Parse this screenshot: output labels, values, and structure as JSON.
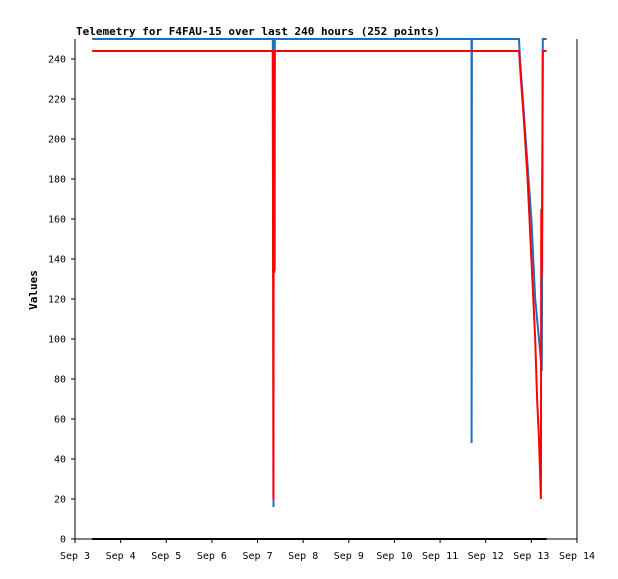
{
  "chart_data": {
    "type": "line",
    "title": "Telemetry for F4FAU-15 over last 240 hours (252 points)",
    "xlabel": "",
    "ylabel": "Values",
    "ylim": [
      0,
      250
    ],
    "xlim": [
      "Sep 3",
      "Sep 14"
    ],
    "x_ticks": [
      "Sep 3",
      "Sep 4",
      "Sep 5",
      "Sep 6",
      "Sep 7",
      "Sep 8",
      "Sep 9",
      "Sep 10",
      "Sep 11",
      "Sep 12",
      "Sep 13",
      "Sep 14"
    ],
    "y_ticks": [
      0,
      20,
      40,
      60,
      80,
      100,
      120,
      140,
      160,
      180,
      200,
      220,
      240
    ],
    "grid": false,
    "series": [
      {
        "color": "#1f6fbf",
        "points": [
          [
            "Sep 3 09:00",
            250
          ],
          [
            "Sep 7 08:00",
            250
          ],
          [
            "Sep 7 08:10",
            134
          ],
          [
            "Sep 7 08:20",
            250
          ],
          [
            "Sep 7 08:25",
            16
          ],
          [
            "Sep 7 08:30",
            250
          ],
          [
            "Sep 7 08:40",
            134
          ],
          [
            "Sep 7 08:45",
            250
          ],
          [
            "Sep 7 09:00",
            134
          ],
          [
            "Sep 7 09:05",
            250
          ],
          [
            "Sep 11 16:30",
            250
          ],
          [
            "Sep 11 16:35",
            48
          ],
          [
            "Sep 11 16:40",
            150
          ],
          [
            "Sep 11 16:45",
            250
          ],
          [
            "Sep 12 17:30",
            250
          ],
          [
            "Sep 12 18:00",
            240
          ],
          [
            "Sep 12 21:00",
            200
          ],
          [
            "Sep 13 00:00",
            160
          ],
          [
            "Sep 13 02:00",
            120
          ],
          [
            "Sep 13 04:00",
            100
          ],
          [
            "Sep 13 05:30",
            84
          ],
          [
            "Sep 13 06:00",
            250
          ],
          [
            "Sep 13 08:00",
            250
          ]
        ]
      },
      {
        "color": "#ff0000",
        "points": [
          [
            "Sep 3 09:00",
            244
          ],
          [
            "Sep 7 08:00",
            244
          ],
          [
            "Sep 7 08:20",
            20
          ],
          [
            "Sep 7 08:30",
            244
          ],
          [
            "Sep 7 08:45",
            133
          ],
          [
            "Sep 7 09:00",
            244
          ],
          [
            "Sep 12 17:30",
            244
          ],
          [
            "Sep 12 18:30",
            230
          ],
          [
            "Sep 12 20:00",
            210
          ],
          [
            "Sep 12 22:00",
            180
          ],
          [
            "Sep 13 00:00",
            140
          ],
          [
            "Sep 13 02:00",
            100
          ],
          [
            "Sep 13 03:00",
            70
          ],
          [
            "Sep 13 04:00",
            50
          ],
          [
            "Sep 13 05:00",
            20
          ],
          [
            "Sep 13 05:15",
            165
          ],
          [
            "Sep 13 05:30",
            132
          ],
          [
            "Sep 13 06:00",
            244
          ],
          [
            "Sep 13 08:00",
            244
          ]
        ]
      },
      {
        "color": "#000000",
        "points": [
          [
            "Sep 3 09:00",
            0
          ],
          [
            "Sep 13 08:00",
            0
          ]
        ]
      }
    ]
  }
}
